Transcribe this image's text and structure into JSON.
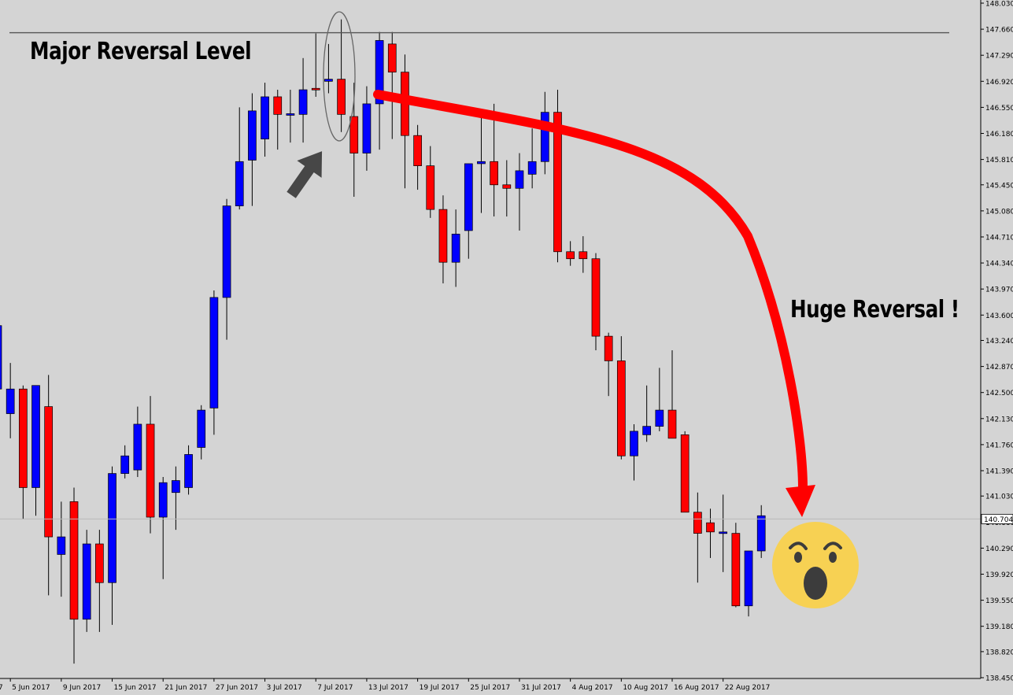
{
  "chart_data": {
    "type": "candlestick",
    "instrument_note": "",
    "y_ticks": [
      "148.030",
      "147.660",
      "147.290",
      "146.920",
      "146.550",
      "146.180",
      "145.810",
      "145.450",
      "145.080",
      "144.710",
      "144.340",
      "143.970",
      "143.600",
      "143.240",
      "142.870",
      "142.500",
      "142.130",
      "141.760",
      "141.390",
      "141.030",
      "140.660",
      "140.290",
      "139.920",
      "139.550",
      "139.180",
      "138.820",
      "138.450"
    ],
    "ylim": [
      138.45,
      148.03
    ],
    "x_ticks": [
      "5 Jun 2017",
      "9 Jun 2017",
      "15 Jun 2017",
      "21 Jun 2017",
      "27 Jun 2017",
      "3 Jul 2017",
      "7 Jul 2017",
      "13 Jul 2017",
      "19 Jul 2017",
      "25 Jul 2017",
      "31 Jul 2017",
      "4 Aug 2017",
      "10 Aug 2017",
      "16 Aug 2017",
      "22 Aug 2017"
    ],
    "x_tick_index": [
      1,
      5,
      9,
      13,
      17,
      21,
      25,
      29,
      33,
      37,
      41,
      45,
      49,
      53,
      57
    ],
    "current_price": "140.704",
    "resistance_level": 147.61,
    "candles": [
      {
        "o": 142.55,
        "h": 143.5,
        "l": 141.1,
        "c": 143.45
      },
      {
        "o": 142.2,
        "h": 142.92,
        "l": 141.85,
        "c": 142.55
      },
      {
        "o": 142.55,
        "h": 142.6,
        "l": 140.7,
        "c": 141.15
      },
      {
        "o": 141.15,
        "h": 142.6,
        "l": 140.75,
        "c": 142.6
      },
      {
        "o": 142.3,
        "h": 142.75,
        "l": 139.62,
        "c": 140.45
      },
      {
        "o": 140.2,
        "h": 140.95,
        "l": 139.6,
        "c": 140.45
      },
      {
        "o": 140.95,
        "h": 141.15,
        "l": 138.65,
        "c": 139.28
      },
      {
        "o": 139.28,
        "h": 140.55,
        "l": 139.1,
        "c": 140.35
      },
      {
        "o": 140.35,
        "h": 140.55,
        "l": 139.1,
        "c": 139.8
      },
      {
        "o": 139.8,
        "h": 141.45,
        "l": 139.2,
        "c": 141.35
      },
      {
        "o": 141.35,
        "h": 141.75,
        "l": 141.28,
        "c": 141.6
      },
      {
        "o": 141.4,
        "h": 142.3,
        "l": 141.3,
        "c": 142.05
      },
      {
        "o": 142.05,
        "h": 142.45,
        "l": 140.5,
        "c": 140.73
      },
      {
        "o": 140.73,
        "h": 141.3,
        "l": 139.85,
        "c": 141.22
      },
      {
        "o": 141.08,
        "h": 141.45,
        "l": 140.55,
        "c": 141.25
      },
      {
        "o": 141.15,
        "h": 141.75,
        "l": 141.05,
        "c": 141.62
      },
      {
        "o": 141.72,
        "h": 142.32,
        "l": 141.55,
        "c": 142.25
      },
      {
        "o": 142.28,
        "h": 143.95,
        "l": 141.9,
        "c": 143.85
      },
      {
        "o": 143.85,
        "h": 145.25,
        "l": 143.25,
        "c": 145.15
      },
      {
        "o": 145.15,
        "h": 146.55,
        "l": 145.1,
        "c": 145.78
      },
      {
        "o": 145.8,
        "h": 146.75,
        "l": 145.15,
        "c": 146.5
      },
      {
        "o": 146.1,
        "h": 146.9,
        "l": 145.85,
        "c": 146.7
      },
      {
        "o": 146.7,
        "h": 146.8,
        "l": 145.95,
        "c": 146.45
      },
      {
        "o": 146.45,
        "h": 146.8,
        "l": 146.05,
        "c": 146.46
      },
      {
        "o": 146.45,
        "h": 147.25,
        "l": 146.05,
        "c": 146.8
      },
      {
        "o": 146.82,
        "h": 147.6,
        "l": 146.7,
        "c": 146.8
      },
      {
        "o": 146.92,
        "h": 147.45,
        "l": 146.75,
        "c": 146.95
      },
      {
        "o": 146.95,
        "h": 147.8,
        "l": 146.2,
        "c": 146.45
      },
      {
        "o": 146.42,
        "h": 146.9,
        "l": 145.28,
        "c": 145.9
      },
      {
        "o": 145.9,
        "h": 146.85,
        "l": 145.65,
        "c": 146.6
      },
      {
        "o": 146.6,
        "h": 147.62,
        "l": 145.95,
        "c": 147.5
      },
      {
        "o": 147.45,
        "h": 147.62,
        "l": 146.1,
        "c": 147.05
      },
      {
        "o": 147.05,
        "h": 147.3,
        "l": 145.4,
        "c": 146.15
      },
      {
        "o": 146.15,
        "h": 146.3,
        "l": 145.38,
        "c": 145.72
      },
      {
        "o": 145.72,
        "h": 146.0,
        "l": 144.98,
        "c": 145.1
      },
      {
        "o": 145.1,
        "h": 145.3,
        "l": 144.05,
        "c": 144.35
      },
      {
        "o": 144.35,
        "h": 145.1,
        "l": 144.0,
        "c": 144.75
      },
      {
        "o": 144.8,
        "h": 145.75,
        "l": 144.4,
        "c": 145.75
      },
      {
        "o": 145.75,
        "h": 146.45,
        "l": 145.05,
        "c": 145.78
      },
      {
        "o": 145.78,
        "h": 146.6,
        "l": 145.0,
        "c": 145.45
      },
      {
        "o": 145.45,
        "h": 145.8,
        "l": 145.0,
        "c": 145.4
      },
      {
        "o": 145.4,
        "h": 145.9,
        "l": 144.8,
        "c": 145.65
      },
      {
        "o": 145.6,
        "h": 146.25,
        "l": 145.4,
        "c": 145.78
      },
      {
        "o": 145.78,
        "h": 146.77,
        "l": 145.6,
        "c": 146.48
      },
      {
        "o": 146.48,
        "h": 146.8,
        "l": 144.35,
        "c": 144.5
      },
      {
        "o": 144.5,
        "h": 144.65,
        "l": 144.3,
        "c": 144.4
      },
      {
        "o": 144.5,
        "h": 144.72,
        "l": 144.2,
        "c": 144.4
      },
      {
        "o": 144.4,
        "h": 144.48,
        "l": 143.1,
        "c": 143.3
      },
      {
        "o": 143.3,
        "h": 143.35,
        "l": 142.45,
        "c": 142.95
      },
      {
        "o": 142.95,
        "h": 143.3,
        "l": 141.55,
        "c": 141.6
      },
      {
        "o": 141.6,
        "h": 142.05,
        "l": 141.25,
        "c": 141.95
      },
      {
        "o": 141.9,
        "h": 142.6,
        "l": 141.8,
        "c": 142.02
      },
      {
        "o": 142.02,
        "h": 142.85,
        "l": 141.95,
        "c": 142.25
      },
      {
        "o": 142.25,
        "h": 143.1,
        "l": 141.85,
        "c": 141.85
      },
      {
        "o": 141.9,
        "h": 141.95,
        "l": 140.8,
        "c": 140.8
      },
      {
        "o": 140.8,
        "h": 141.08,
        "l": 139.8,
        "c": 140.5
      },
      {
        "o": 140.65,
        "h": 140.85,
        "l": 140.15,
        "c": 140.52
      },
      {
        "o": 140.52,
        "h": 141.05,
        "l": 139.95,
        "c": 140.52
      },
      {
        "o": 140.5,
        "h": 140.65,
        "l": 139.45,
        "c": 139.47
      },
      {
        "o": 139.47,
        "h": 140.25,
        "l": 139.32,
        "c": 140.25
      },
      {
        "o": 140.25,
        "h": 140.9,
        "l": 140.15,
        "c": 140.75
      }
    ],
    "grid": false,
    "colors": {
      "bull": "#0000ff",
      "bear": "#ff0000",
      "wick": "#000000",
      "background": "#d4d4d4",
      "arrow": "#ff0000"
    }
  },
  "annotations": {
    "major_level_label": "Major Reversal Level",
    "huge_reversal_label": "Huge Reversal !",
    "left_edge_tick": "7",
    "pointer_arrow_icon": "pointer-arrow-icon",
    "surprised_emoji_icon": "surprised-face-icon"
  }
}
